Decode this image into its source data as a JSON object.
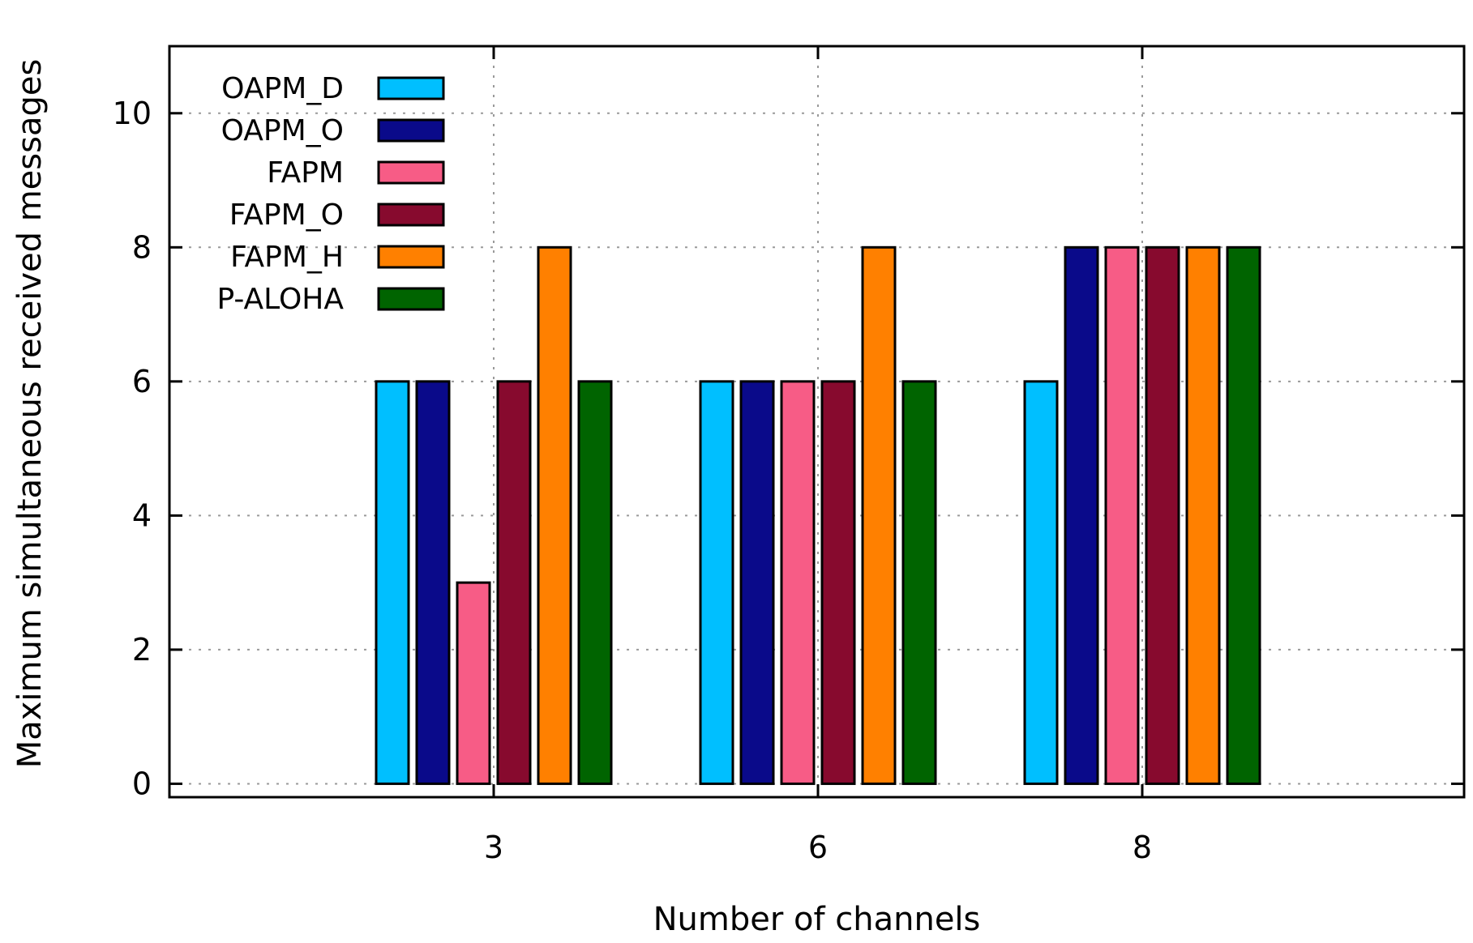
{
  "chart_data": {
    "type": "bar",
    "title": "",
    "xlabel": "Number of channels",
    "ylabel": "Maximum simultaneous received messages",
    "categories": [
      "3",
      "6",
      "8"
    ],
    "ylim": [
      -0.2,
      11
    ],
    "yticks": [
      "0",
      "2",
      "4",
      "6",
      "8",
      "10"
    ],
    "grid": true,
    "legend_position": "top-left",
    "series": [
      {
        "name": "OAPM_D",
        "color": "#00bfff",
        "values": [
          6,
          6,
          6
        ]
      },
      {
        "name": "OAPM_O",
        "color": "#0a0a8a",
        "values": [
          6,
          6,
          8
        ]
      },
      {
        "name": "FAPM",
        "color": "#f75c86",
        "values": [
          3,
          6,
          8
        ]
      },
      {
        "name": "FAPM_O",
        "color": "#870a2e",
        "values": [
          6,
          6,
          8
        ]
      },
      {
        "name": "FAPM_H",
        "color": "#ff8000",
        "values": [
          8,
          8,
          8
        ]
      },
      {
        "name": "P-ALOHA",
        "color": "#006400",
        "values": [
          6,
          6,
          8
        ]
      }
    ]
  }
}
